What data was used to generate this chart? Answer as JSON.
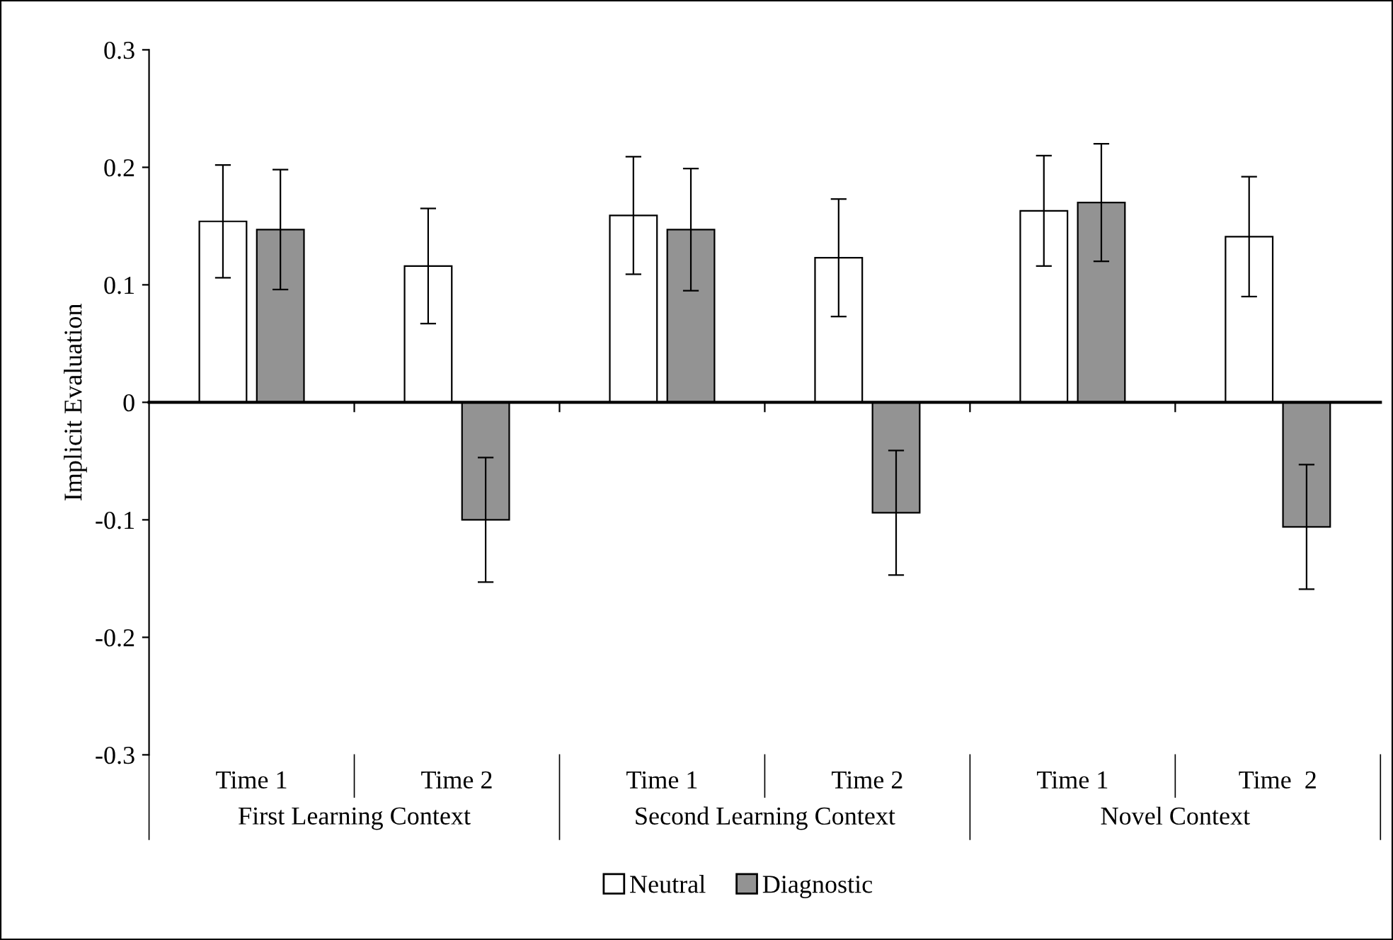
{
  "chart_data": {
    "type": "bar",
    "ylabel": "Implicit Evaluation",
    "categories": [
      "Time 1",
      "Time 2",
      "Time 1",
      "Time 2",
      "Time 1",
      "Time  2"
    ],
    "series": [
      {
        "name": "Neutral",
        "color": "#ffffff",
        "values": [
          0.154,
          0.116,
          0.159,
          0.123,
          0.163,
          0.141
        ],
        "errors": [
          0.048,
          0.049,
          0.05,
          0.05,
          0.047,
          0.051
        ]
      },
      {
        "name": "Diagnostic",
        "color": "#939393",
        "values": [
          0.147,
          -0.1,
          0.147,
          -0.094,
          0.17,
          -0.106
        ],
        "errors": [
          0.051,
          0.053,
          0.052,
          0.053,
          0.05,
          0.053
        ]
      }
    ],
    "annotations": [
      "First Learning Context",
      "Second Learning Context",
      "Novel Context"
    ],
    "ylim": [
      -0.3,
      0.3
    ],
    "yticks": [
      {
        "value": -0.3,
        "label": "-0.3"
      },
      {
        "value": -0.2,
        "label": "-0.2"
      },
      {
        "value": -0.1,
        "label": "-0.1"
      },
      0,
      0.1,
      0.2,
      0.3
    ],
    "legend": "bottom"
  }
}
